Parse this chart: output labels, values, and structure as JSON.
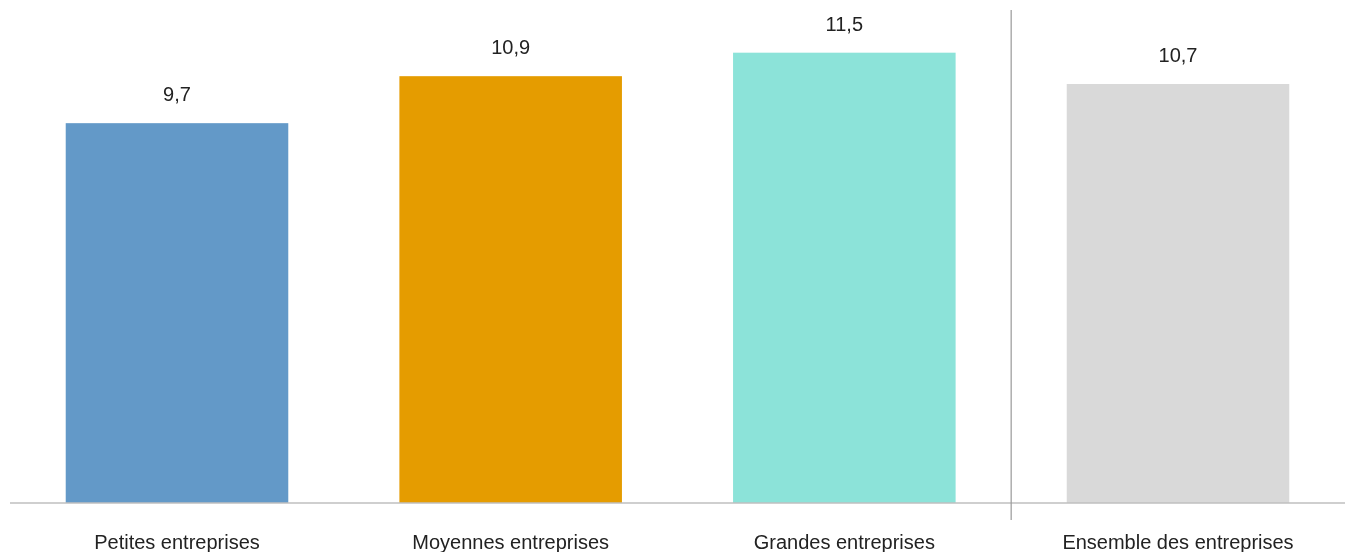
{
  "chart_data": {
    "type": "bar",
    "categories": [
      "Petites entreprises",
      "Moyennes entreprises",
      "Grandes entreprises",
      "Ensemble des entreprises"
    ],
    "values": [
      9.7,
      10.9,
      11.5,
      10.7
    ],
    "colors": [
      "#6399c8",
      "#e59c00",
      "#8ce3d9",
      "#d9d9d9"
    ],
    "value_labels": [
      "9,7",
      "10,9",
      "11,5",
      "10,7"
    ],
    "grid": false
  }
}
